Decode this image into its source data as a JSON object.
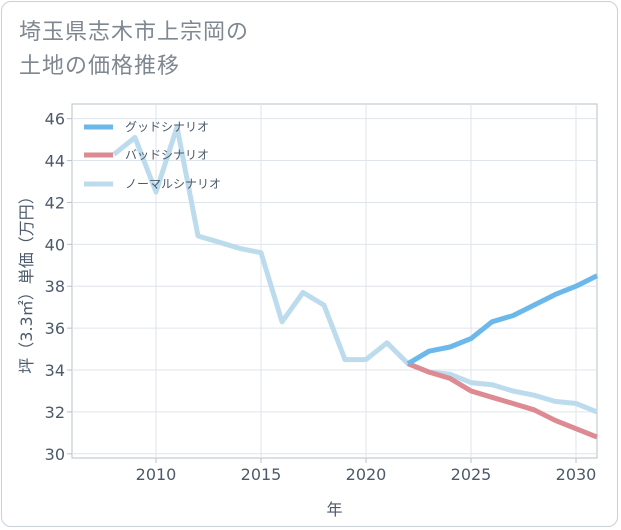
{
  "title": {
    "line1": "埼玉県志木市上宗岡の",
    "line2": "土地の価格推移"
  },
  "chart_data": {
    "type": "line",
    "xlabel": "年",
    "ylabel": "坪（3.3㎡）単価（万円）",
    "xlim": [
      2006,
      2031
    ],
    "ylim": [
      29.8,
      46.7
    ],
    "xticks": [
      2010,
      2015,
      2020,
      2025,
      2030
    ],
    "yticks": [
      30,
      32,
      34,
      36,
      38,
      40,
      42,
      44,
      46
    ],
    "grid": true,
    "legend_position": "top-left",
    "series": [
      {
        "name": "グッドシナリオ",
        "color": "#6cb8ea",
        "x": [
          2022,
          2023,
          2024,
          2025,
          2026,
          2027,
          2028,
          2029,
          2030,
          2031
        ],
        "y": [
          34.3,
          34.9,
          35.1,
          35.5,
          36.3,
          36.6,
          37.1,
          37.6,
          38.0,
          38.5
        ]
      },
      {
        "name": "バッドシナリオ",
        "color": "#dd8a93",
        "x": [
          2022,
          2023,
          2024,
          2025,
          2026,
          2027,
          2028,
          2029,
          2030,
          2031
        ],
        "y": [
          34.3,
          33.9,
          33.6,
          33.0,
          32.7,
          32.4,
          32.1,
          31.6,
          31.2,
          30.8
        ]
      },
      {
        "name": "ノーマルシナリオ",
        "color": "#bcdcee",
        "x": [
          2008,
          2009,
          2010,
          2011,
          2012,
          2013,
          2014,
          2015,
          2016,
          2017,
          2018,
          2019,
          2020,
          2021,
          2022,
          2023,
          2024,
          2025,
          2026,
          2027,
          2028,
          2029,
          2030,
          2031
        ],
        "y": [
          44.3,
          45.1,
          42.5,
          45.6,
          40.4,
          40.1,
          39.8,
          39.6,
          36.3,
          37.7,
          37.1,
          34.5,
          34.5,
          35.3,
          34.3,
          33.9,
          33.8,
          33.4,
          33.3,
          33.0,
          32.8,
          32.5,
          32.4,
          32.0
        ]
      }
    ]
  }
}
